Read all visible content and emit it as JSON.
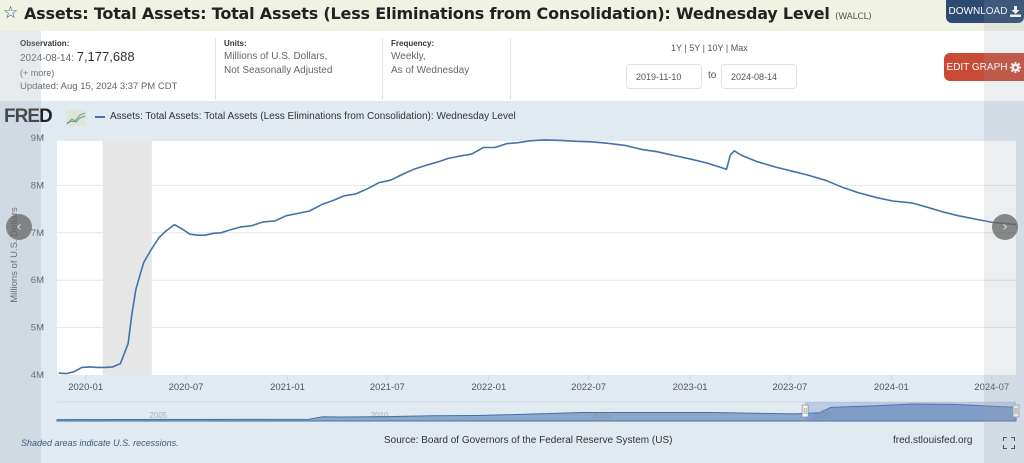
{
  "header": {
    "title": "Assets: Total Assets: Total Assets (Less Eliminations from Consolidation): Wednesday Level",
    "series_code": "(WALCL)",
    "star_icon": "star-outline-icon",
    "download_label": "DOWNLOAD",
    "download_icon": "download-icon"
  },
  "meta": {
    "observation_label": "Observation:",
    "observation_date": "2024-08-14:",
    "observation_value": "7,177,688",
    "more_link": "(+ more)",
    "updated": "Updated: Aug 15, 2024 3:37 PM CDT",
    "units_label": "Units:",
    "units_line1": "Millions of U.S. Dollars,",
    "units_line2": "Not Seasonally Adjusted",
    "frequency_label": "Frequency:",
    "frequency_line1": "Weekly,",
    "frequency_line2": "As of Wednesday"
  },
  "range": {
    "links": [
      "1Y",
      "5Y",
      "10Y",
      "Max"
    ],
    "separator": "|",
    "start_date": "2019-11-10",
    "to_label": "to",
    "end_date": "2024-08-14"
  },
  "edit_graph": {
    "label": "EDIT GRAPH",
    "icon": "gear-icon"
  },
  "logo": {
    "text": "FRED"
  },
  "footer": {
    "recession_note": "Shaded areas indicate U.S. recessions.",
    "source": "Source: Board of Governors of the Federal Reserve System (US)",
    "site": "fred.stlouisfed.org"
  },
  "colors": {
    "line": "#4572a7",
    "recession": "#e6e6e6",
    "background": "#e1e9f1",
    "download_btn": "#2d4a73",
    "edit_btn": "#c94a35"
  },
  "chart_data": {
    "type": "line",
    "title": "",
    "legend": [
      "Assets: Total Assets: Total Assets (Less Eliminations from Consolidation): Wednesday Level"
    ],
    "legend_position": "top-left",
    "xlabel": "",
    "ylabel": "Millions of U.S. Dollars",
    "ylim": [
      4000000,
      9000000
    ],
    "xlim": [
      "2019-11-10",
      "2024-08-14"
    ],
    "y_ticks": [
      4000000,
      5000000,
      6000000,
      7000000,
      8000000,
      9000000
    ],
    "y_tick_labels": [
      "4M",
      "5M",
      "6M",
      "7M",
      "8M",
      "9M"
    ],
    "x_ticks": [
      "2020-01",
      "2020-07",
      "2021-01",
      "2021-07",
      "2022-01",
      "2022-07",
      "2023-01",
      "2023-07",
      "2024-01",
      "2024-07"
    ],
    "grid": true,
    "recessions": [
      {
        "start": "2020-02-01",
        "end": "2020-04-30"
      }
    ],
    "series": [
      {
        "name": "WALCL",
        "points": [
          [
            "2019-11-13",
            4040000
          ],
          [
            "2019-11-27",
            4030000
          ],
          [
            "2019-12-11",
            4070000
          ],
          [
            "2019-12-25",
            4160000
          ],
          [
            "2020-01-08",
            4170000
          ],
          [
            "2020-01-22",
            4160000
          ],
          [
            "2020-02-05",
            4160000
          ],
          [
            "2020-02-19",
            4170000
          ],
          [
            "2020-03-04",
            4240000
          ],
          [
            "2020-03-18",
            4660000
          ],
          [
            "2020-03-25",
            5300000
          ],
          [
            "2020-04-01",
            5810000
          ],
          [
            "2020-04-15",
            6370000
          ],
          [
            "2020-04-29",
            6650000
          ],
          [
            "2020-05-13",
            6900000
          ],
          [
            "2020-05-27",
            7050000
          ],
          [
            "2020-06-10",
            7170000
          ],
          [
            "2020-06-24",
            7080000
          ],
          [
            "2020-07-08",
            6970000
          ],
          [
            "2020-07-22",
            6950000
          ],
          [
            "2020-08-05",
            6950000
          ],
          [
            "2020-08-19",
            6990000
          ],
          [
            "2020-09-02",
            7000000
          ],
          [
            "2020-09-16",
            7050000
          ],
          [
            "2020-10-07",
            7120000
          ],
          [
            "2020-10-28",
            7150000
          ],
          [
            "2020-11-18",
            7230000
          ],
          [
            "2020-12-09",
            7250000
          ],
          [
            "2020-12-30",
            7360000
          ],
          [
            "2021-01-20",
            7410000
          ],
          [
            "2021-02-10",
            7460000
          ],
          [
            "2021-03-03",
            7590000
          ],
          [
            "2021-03-24",
            7680000
          ],
          [
            "2021-04-14",
            7780000
          ],
          [
            "2021-05-05",
            7820000
          ],
          [
            "2021-05-26",
            7930000
          ],
          [
            "2021-06-16",
            8060000
          ],
          [
            "2021-07-07",
            8110000
          ],
          [
            "2021-07-28",
            8230000
          ],
          [
            "2021-08-18",
            8340000
          ],
          [
            "2021-09-08",
            8420000
          ],
          [
            "2021-09-29",
            8490000
          ],
          [
            "2021-10-20",
            8570000
          ],
          [
            "2021-11-10",
            8620000
          ],
          [
            "2021-12-01",
            8660000
          ],
          [
            "2021-12-22",
            8800000
          ],
          [
            "2022-01-12",
            8800000
          ],
          [
            "2022-02-02",
            8880000
          ],
          [
            "2022-02-23",
            8900000
          ],
          [
            "2022-03-16",
            8940000
          ],
          [
            "2022-04-13",
            8960000
          ],
          [
            "2022-05-11",
            8950000
          ],
          [
            "2022-06-08",
            8930000
          ],
          [
            "2022-07-06",
            8920000
          ],
          [
            "2022-08-03",
            8890000
          ],
          [
            "2022-09-07",
            8840000
          ],
          [
            "2022-10-05",
            8760000
          ],
          [
            "2022-11-02",
            8710000
          ],
          [
            "2022-12-07",
            8620000
          ],
          [
            "2023-01-04",
            8550000
          ],
          [
            "2023-02-01",
            8470000
          ],
          [
            "2023-03-08",
            8340000
          ],
          [
            "2023-03-15",
            8640000
          ],
          [
            "2023-03-22",
            8730000
          ],
          [
            "2023-04-05",
            8630000
          ],
          [
            "2023-05-03",
            8500000
          ],
          [
            "2023-06-07",
            8380000
          ],
          [
            "2023-07-05",
            8300000
          ],
          [
            "2023-08-02",
            8220000
          ],
          [
            "2023-09-06",
            8100000
          ],
          [
            "2023-10-04",
            7960000
          ],
          [
            "2023-11-01",
            7850000
          ],
          [
            "2023-12-06",
            7740000
          ],
          [
            "2024-01-03",
            7670000
          ],
          [
            "2024-02-07",
            7630000
          ],
          [
            "2024-03-06",
            7540000
          ],
          [
            "2024-04-03",
            7440000
          ],
          [
            "2024-05-01",
            7360000
          ],
          [
            "2024-06-05",
            7280000
          ],
          [
            "2024-07-03",
            7220000
          ],
          [
            "2024-07-31",
            7190000
          ],
          [
            "2024-08-14",
            7177688
          ]
        ]
      }
    ],
    "navigator": {
      "labels": [
        "2005",
        "2010",
        "2015",
        "2020"
      ],
      "range": [
        "2002-12-18",
        "2024-08-14"
      ],
      "selected": [
        "2019-11-10",
        "2024-08-14"
      ],
      "points": [
        [
          "2002-12-18",
          720000
        ],
        [
          "2008-08-27",
          900000
        ],
        [
          "2008-12-17",
          2250000
        ],
        [
          "2009-06-03",
          2080000
        ],
        [
          "2010-06-02",
          2330000
        ],
        [
          "2011-06-01",
          2800000
        ],
        [
          "2012-06-06",
          2870000
        ],
        [
          "2013-06-05",
          3450000
        ],
        [
          "2014-10-29",
          4480000
        ],
        [
          "2017-10-04",
          4460000
        ],
        [
          "2019-08-28",
          3760000
        ],
        [
          "2019-11-13",
          4040000
        ],
        [
          "2020-03-04",
          4240000
        ],
        [
          "2020-06-10",
          7170000
        ],
        [
          "2021-06-16",
          8060000
        ],
        [
          "2022-04-13",
          8960000
        ],
        [
          "2023-03-22",
          8730000
        ],
        [
          "2024-08-14",
          7177688
        ]
      ]
    }
  }
}
